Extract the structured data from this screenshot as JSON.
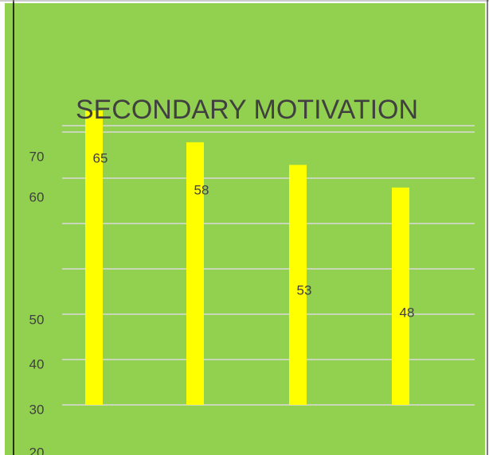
{
  "chart_data": {
    "type": "bar",
    "title": "SECONDARY MOTIVATION",
    "categories": [
      null,
      null,
      null,
      null
    ],
    "values": [
      65,
      58,
      53,
      48
    ],
    "color": "#ffff00",
    "ylim": [
      0,
      65
    ],
    "yticks": [
      70,
      60,
      50,
      40,
      30,
      20
    ]
  }
}
